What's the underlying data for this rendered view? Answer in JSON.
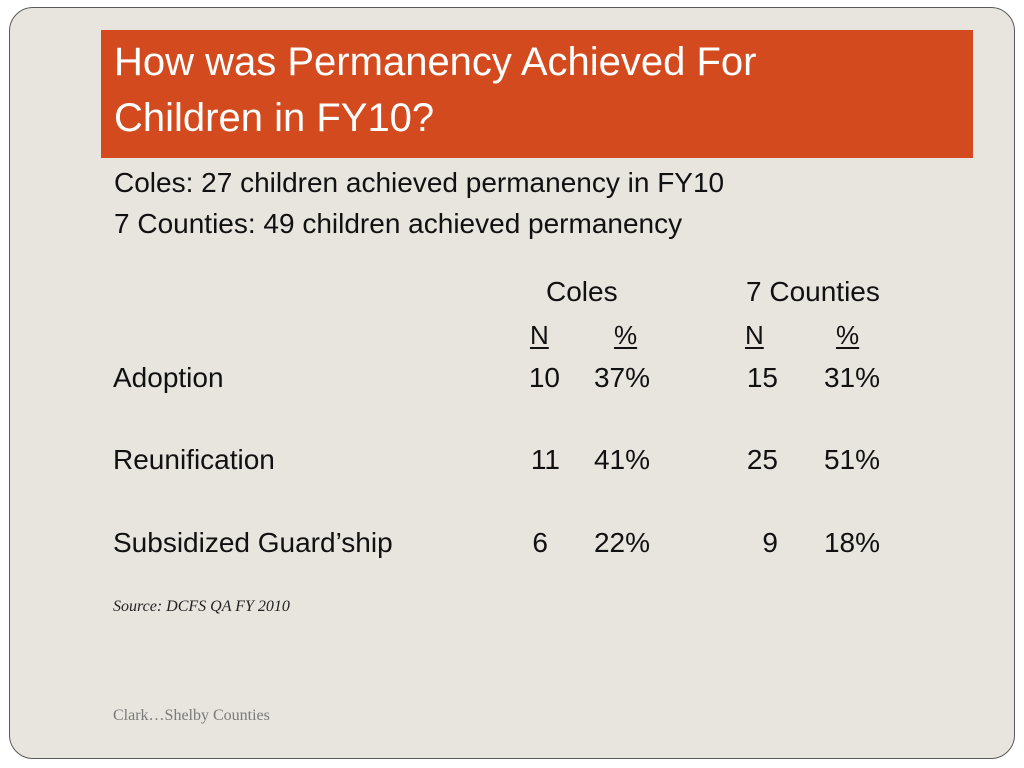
{
  "title": "How was Permanency Achieved For\nChildren in FY10?",
  "summary": [
    "Coles: 27 children achieved permanency in FY10",
    "7 Counties: 49 children achieved permanency"
  ],
  "table": {
    "groups": [
      {
        "label": "Coles",
        "n_label": "N",
        "pct_label": "%"
      },
      {
        "label": "7 Counties",
        "n_label": "N",
        "pct_label": "%"
      }
    ],
    "rows": [
      {
        "label": "Adoption",
        "values": [
          "10",
          "37%",
          "15",
          "31%"
        ]
      },
      {
        "label": "Reunification",
        "values": [
          "11",
          "41%",
          "25",
          "51%"
        ]
      },
      {
        "label": "Subsidized Guard’ship",
        "values": [
          "6",
          "22%",
          "9",
          "18%"
        ]
      }
    ]
  },
  "source": "Source: DCFS QA FY 2010",
  "footer": "Clark…Shelby Counties",
  "colors": {
    "title_bar": "#d24a1e",
    "slide_background": "#e8e4de"
  }
}
